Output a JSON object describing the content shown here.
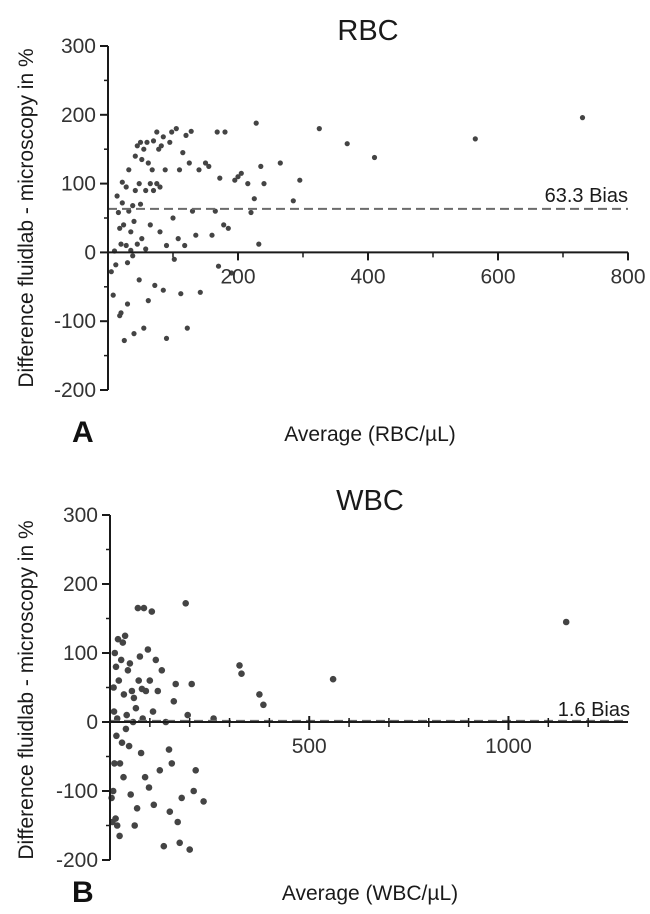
{
  "chart_data": [
    {
      "type": "scatter",
      "panel_letter": "A",
      "title": "RBC",
      "xlabel": "Average  (RBC/µL)",
      "ylabel": "Difference fluidlab - microscopy in %",
      "xlim": [
        0,
        800
      ],
      "ylim": [
        -200,
        300
      ],
      "xticks": [
        200,
        400,
        600,
        800
      ],
      "yticks": [
        300,
        200,
        100,
        0,
        -100,
        -200
      ],
      "bias": 63.3,
      "bias_label": "63.3 Bias",
      "points": [
        [
          5,
          -28
        ],
        [
          8,
          -62
        ],
        [
          10,
          2
        ],
        [
          12,
          -18
        ],
        [
          14,
          82
        ],
        [
          16,
          58
        ],
        [
          18,
          35
        ],
        [
          18,
          -92
        ],
        [
          20,
          12
        ],
        [
          20,
          -88
        ],
        [
          22,
          102
        ],
        [
          22,
          72
        ],
        [
          24,
          40
        ],
        [
          25,
          -128
        ],
        [
          28,
          95
        ],
        [
          28,
          10
        ],
        [
          30,
          -15
        ],
        [
          30,
          -75
        ],
        [
          32,
          120
        ],
        [
          32,
          60
        ],
        [
          35,
          30
        ],
        [
          35,
          3
        ],
        [
          38,
          68
        ],
        [
          38,
          -5
        ],
        [
          40,
          45
        ],
        [
          40,
          -118
        ],
        [
          42,
          140
        ],
        [
          42,
          90
        ],
        [
          45,
          155
        ],
        [
          45,
          12
        ],
        [
          48,
          100
        ],
        [
          48,
          -40
        ],
        [
          50,
          160
        ],
        [
          50,
          70
        ],
        [
          52,
          135
        ],
        [
          52,
          20
        ],
        [
          55,
          150
        ],
        [
          55,
          -110
        ],
        [
          58,
          90
        ],
        [
          58,
          5
        ],
        [
          60,
          160
        ],
        [
          62,
          130
        ],
        [
          62,
          -70
        ],
        [
          65,
          100
        ],
        [
          65,
          40
        ],
        [
          68,
          120
        ],
        [
          70,
          162
        ],
        [
          70,
          90
        ],
        [
          72,
          -48
        ],
        [
          75,
          175
        ],
        [
          75,
          100
        ],
        [
          78,
          150
        ],
        [
          80,
          95
        ],
        [
          80,
          30
        ],
        [
          82,
          155
        ],
        [
          85,
          168
        ],
        [
          85,
          -55
        ],
        [
          88,
          120
        ],
        [
          90,
          10
        ],
        [
          90,
          -125
        ],
        [
          95,
          160
        ],
        [
          98,
          175
        ],
        [
          100,
          50
        ],
        [
          102,
          -10
        ],
        [
          105,
          180
        ],
        [
          108,
          20
        ],
        [
          110,
          120
        ],
        [
          112,
          -60
        ],
        [
          115,
          145
        ],
        [
          118,
          10
        ],
        [
          120,
          170
        ],
        [
          122,
          -110
        ],
        [
          125,
          130
        ],
        [
          128,
          176
        ],
        [
          130,
          60
        ],
        [
          135,
          25
        ],
        [
          140,
          120
        ],
        [
          142,
          -58
        ],
        [
          150,
          130
        ],
        [
          155,
          125
        ],
        [
          160,
          25
        ],
        [
          165,
          60
        ],
        [
          168,
          175
        ],
        [
          170,
          -20
        ],
        [
          172,
          108
        ],
        [
          178,
          40
        ],
        [
          180,
          175
        ],
        [
          185,
          35
        ],
        [
          190,
          -30
        ],
        [
          195,
          105
        ],
        [
          200,
          110
        ],
        [
          205,
          115
        ],
        [
          215,
          100
        ],
        [
          220,
          58
        ],
        [
          225,
          78
        ],
        [
          228,
          188
        ],
        [
          232,
          12
        ],
        [
          235,
          125
        ],
        [
          240,
          100
        ],
        [
          265,
          130
        ],
        [
          285,
          75
        ],
        [
          295,
          105
        ],
        [
          325,
          180
        ],
        [
          368,
          158
        ],
        [
          410,
          138
        ],
        [
          565,
          165
        ],
        [
          730,
          196
        ]
      ]
    },
    {
      "type": "scatter",
      "panel_letter": "B",
      "title": "WBC",
      "xlabel": "Average (WBC/µL)",
      "ylabel": "Difference fluidlab - microscopy in %",
      "xlim": [
        0,
        1300
      ],
      "ylim": [
        -200,
        300
      ],
      "xticks": [
        500,
        1000
      ],
      "yticks": [
        300,
        200,
        100,
        0,
        -100,
        -200
      ],
      "bias": 1.6,
      "bias_label": "1.6 Bias",
      "points": [
        [
          4,
          -110
        ],
        [
          6,
          -145
        ],
        [
          8,
          -100
        ],
        [
          9,
          50
        ],
        [
          10,
          15
        ],
        [
          11,
          -60
        ],
        [
          12,
          100
        ],
        [
          14,
          -140
        ],
        [
          15,
          80
        ],
        [
          16,
          -20
        ],
        [
          18,
          5
        ],
        [
          18,
          -150
        ],
        [
          20,
          120
        ],
        [
          22,
          60
        ],
        [
          24,
          -165
        ],
        [
          25,
          -60
        ],
        [
          28,
          90
        ],
        [
          30,
          -30
        ],
        [
          32,
          115
        ],
        [
          34,
          -80
        ],
        [
          35,
          40
        ],
        [
          38,
          125
        ],
        [
          40,
          -10
        ],
        [
          42,
          10
        ],
        [
          45,
          75
        ],
        [
          48,
          -35
        ],
        [
          50,
          85
        ],
        [
          52,
          -105
        ],
        [
          55,
          45
        ],
        [
          58,
          0
        ],
        [
          60,
          35
        ],
        [
          62,
          -150
        ],
        [
          65,
          20
        ],
        [
          68,
          -125
        ],
        [
          70,
          165
        ],
        [
          72,
          60
        ],
        [
          75,
          95
        ],
        [
          78,
          -45
        ],
        [
          80,
          48
        ],
        [
          82,
          5
        ],
        [
          85,
          165
        ],
        [
          88,
          -80
        ],
        [
          90,
          45
        ],
        [
          95,
          105
        ],
        [
          98,
          -95
        ],
        [
          100,
          60
        ],
        [
          105,
          160
        ],
        [
          108,
          15
        ],
        [
          110,
          -120
        ],
        [
          115,
          90
        ],
        [
          120,
          45
        ],
        [
          125,
          -70
        ],
        [
          130,
          75
        ],
        [
          135,
          -180
        ],
        [
          140,
          0
        ],
        [
          148,
          -40
        ],
        [
          150,
          -130
        ],
        [
          155,
          -60
        ],
        [
          160,
          30
        ],
        [
          165,
          55
        ],
        [
          170,
          -145
        ],
        [
          175,
          -175
        ],
        [
          180,
          -110
        ],
        [
          190,
          172
        ],
        [
          195,
          10
        ],
        [
          200,
          -185
        ],
        [
          205,
          55
        ],
        [
          210,
          -100
        ],
        [
          215,
          -70
        ],
        [
          235,
          -115
        ],
        [
          260,
          5
        ],
        [
          325,
          82
        ],
        [
          330,
          70
        ],
        [
          375,
          40
        ],
        [
          385,
          25
        ],
        [
          560,
          62
        ],
        [
          1145,
          145
        ]
      ]
    }
  ]
}
